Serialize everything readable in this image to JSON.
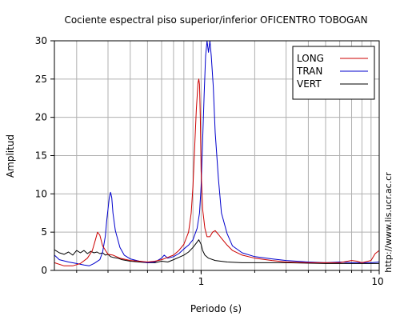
{
  "chart_data": {
    "type": "line",
    "title": "Cociente espectral piso superior/inferior OFICENTRO TOBOGAN",
    "xlabel": "Periodo (s)",
    "ylabel": "Amplitud",
    "xscale": "log",
    "xlim": [
      0.15,
      10
    ],
    "ylim": [
      0,
      30
    ],
    "xticks": [
      1,
      10
    ],
    "xticklabels": [
      "1",
      "10"
    ],
    "yticks": [
      0,
      5,
      10,
      15,
      20,
      25,
      30
    ],
    "grid": true,
    "legend_position": "top-right",
    "annotation": "http://www.lis.ucr.ac.cr",
    "series": [
      {
        "name": "LONG",
        "color": "#cc0000",
        "points": [
          [
            0.15,
            1.0
          ],
          [
            0.17,
            0.6
          ],
          [
            0.19,
            0.6
          ],
          [
            0.21,
            0.9
          ],
          [
            0.23,
            1.6
          ],
          [
            0.245,
            2.6
          ],
          [
            0.255,
            4.0
          ],
          [
            0.262,
            5.0
          ],
          [
            0.27,
            4.6
          ],
          [
            0.28,
            3.2
          ],
          [
            0.3,
            2.1
          ],
          [
            0.32,
            2.0
          ],
          [
            0.35,
            1.6
          ],
          [
            0.4,
            1.3
          ],
          [
            0.45,
            1.2
          ],
          [
            0.5,
            1.1
          ],
          [
            0.55,
            1.2
          ],
          [
            0.6,
            1.4
          ],
          [
            0.65,
            1.7
          ],
          [
            0.7,
            2.0
          ],
          [
            0.75,
            2.6
          ],
          [
            0.8,
            3.4
          ],
          [
            0.85,
            5.0
          ],
          [
            0.88,
            7.5
          ],
          [
            0.9,
            11.0
          ],
          [
            0.92,
            16.0
          ],
          [
            0.94,
            21.0
          ],
          [
            0.96,
            24.5
          ],
          [
            0.97,
            25.0
          ],
          [
            0.98,
            24.3
          ],
          [
            0.99,
            20.0
          ],
          [
            1.0,
            13.0
          ],
          [
            1.02,
            8.0
          ],
          [
            1.05,
            5.5
          ],
          [
            1.08,
            4.4
          ],
          [
            1.12,
            4.4
          ],
          [
            1.16,
            5.0
          ],
          [
            1.2,
            5.2
          ],
          [
            1.25,
            4.7
          ],
          [
            1.3,
            4.2
          ],
          [
            1.4,
            3.3
          ],
          [
            1.5,
            2.6
          ],
          [
            1.7,
            2.0
          ],
          [
            2.0,
            1.6
          ],
          [
            2.5,
            1.3
          ],
          [
            3.0,
            1.1
          ],
          [
            4.0,
            1.0
          ],
          [
            5.0,
            1.0
          ],
          [
            6.0,
            1.0
          ],
          [
            7.0,
            1.3
          ],
          [
            7.5,
            1.2
          ],
          [
            8.0,
            1.0
          ],
          [
            9.0,
            1.3
          ],
          [
            9.5,
            2.2
          ],
          [
            10.0,
            2.6
          ]
        ]
      },
      {
        "name": "TRAN",
        "color": "#0000cc",
        "points": [
          [
            0.15,
            2.0
          ],
          [
            0.16,
            1.4
          ],
          [
            0.18,
            1.1
          ],
          [
            0.2,
            0.9
          ],
          [
            0.22,
            0.7
          ],
          [
            0.235,
            0.6
          ],
          [
            0.25,
            0.9
          ],
          [
            0.27,
            1.4
          ],
          [
            0.28,
            2.4
          ],
          [
            0.29,
            4.5
          ],
          [
            0.295,
            6.5
          ],
          [
            0.3,
            8.0
          ],
          [
            0.305,
            9.5
          ],
          [
            0.31,
            10.2
          ],
          [
            0.315,
            9.5
          ],
          [
            0.32,
            7.5
          ],
          [
            0.33,
            5.2
          ],
          [
            0.35,
            3.0
          ],
          [
            0.37,
            2.0
          ],
          [
            0.4,
            1.5
          ],
          [
            0.45,
            1.2
          ],
          [
            0.5,
            1.0
          ],
          [
            0.55,
            1.1
          ],
          [
            0.6,
            1.6
          ],
          [
            0.62,
            2.0
          ],
          [
            0.65,
            1.6
          ],
          [
            0.7,
            1.8
          ],
          [
            0.75,
            2.2
          ],
          [
            0.8,
            2.8
          ],
          [
            0.85,
            3.3
          ],
          [
            0.9,
            4.0
          ],
          [
            0.95,
            5.5
          ],
          [
            0.98,
            7.5
          ],
          [
            1.0,
            11.0
          ],
          [
            1.02,
            17.0
          ],
          [
            1.04,
            23.0
          ],
          [
            1.06,
            28.0
          ],
          [
            1.08,
            30.0
          ],
          [
            1.1,
            28.5
          ],
          [
            1.12,
            30.0
          ],
          [
            1.14,
            28.0
          ],
          [
            1.17,
            24.0
          ],
          [
            1.2,
            18.0
          ],
          [
            1.25,
            12.0
          ],
          [
            1.3,
            7.5
          ],
          [
            1.4,
            4.8
          ],
          [
            1.5,
            3.2
          ],
          [
            1.7,
            2.3
          ],
          [
            2.0,
            1.8
          ],
          [
            2.5,
            1.5
          ],
          [
            3.0,
            1.3
          ],
          [
            4.0,
            1.1
          ],
          [
            5.0,
            1.0
          ],
          [
            6.0,
            1.1
          ],
          [
            7.0,
            1.0
          ],
          [
            8.0,
            1.0
          ],
          [
            9.0,
            1.0
          ],
          [
            10.0,
            1.1
          ]
        ]
      },
      {
        "name": "VERT",
        "color": "#000000",
        "points": [
          [
            0.15,
            2.7
          ],
          [
            0.16,
            2.3
          ],
          [
            0.17,
            2.1
          ],
          [
            0.18,
            2.4
          ],
          [
            0.19,
            2.0
          ],
          [
            0.2,
            2.6
          ],
          [
            0.21,
            2.3
          ],
          [
            0.22,
            2.6
          ],
          [
            0.23,
            2.2
          ],
          [
            0.24,
            2.5
          ],
          [
            0.25,
            2.3
          ],
          [
            0.26,
            2.4
          ],
          [
            0.27,
            2.2
          ],
          [
            0.28,
            2.3
          ],
          [
            0.29,
            2.0
          ],
          [
            0.3,
            2.1
          ],
          [
            0.31,
            1.8
          ],
          [
            0.32,
            1.7
          ],
          [
            0.34,
            1.6
          ],
          [
            0.36,
            1.4
          ],
          [
            0.38,
            1.3
          ],
          [
            0.4,
            1.2
          ],
          [
            0.45,
            1.1
          ],
          [
            0.5,
            1.0
          ],
          [
            0.55,
            1.0
          ],
          [
            0.6,
            1.2
          ],
          [
            0.65,
            1.1
          ],
          [
            0.7,
            1.4
          ],
          [
            0.75,
            1.7
          ],
          [
            0.8,
            2.0
          ],
          [
            0.85,
            2.4
          ],
          [
            0.9,
            3.0
          ],
          [
            0.95,
            3.7
          ],
          [
            0.97,
            4.0
          ],
          [
            1.0,
            3.4
          ],
          [
            1.02,
            2.6
          ],
          [
            1.05,
            2.0
          ],
          [
            1.1,
            1.6
          ],
          [
            1.2,
            1.3
          ],
          [
            1.4,
            1.1
          ],
          [
            1.7,
            1.0
          ],
          [
            2.0,
            1.0
          ],
          [
            3.0,
            1.0
          ],
          [
            5.0,
            0.9
          ],
          [
            7.0,
            0.9
          ],
          [
            10.0,
            0.9
          ]
        ]
      }
    ]
  }
}
